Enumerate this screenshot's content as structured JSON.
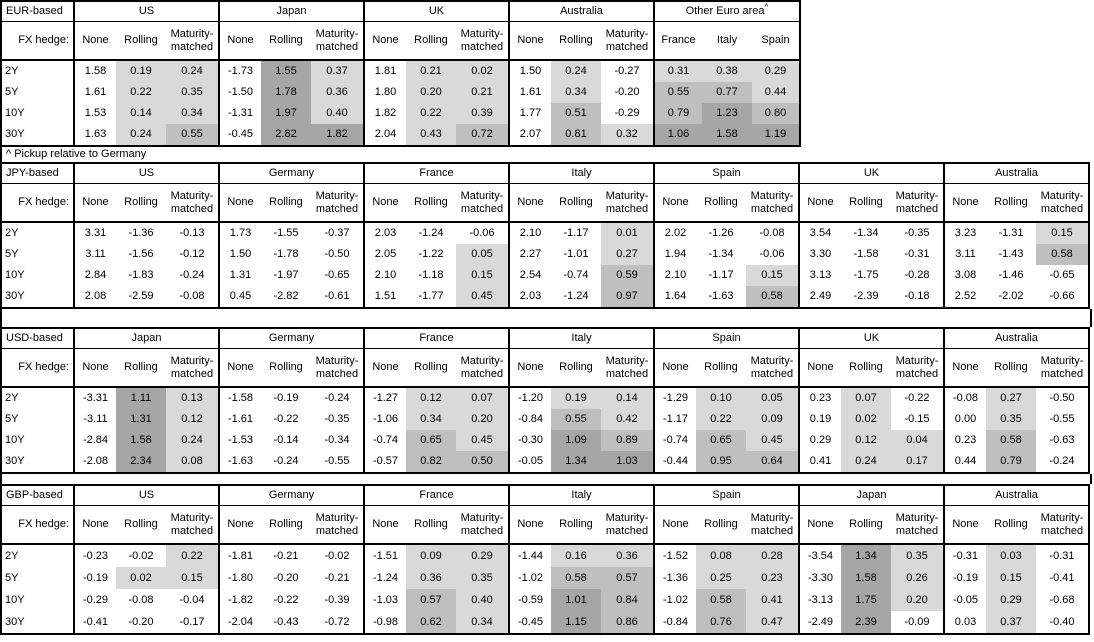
{
  "note": "^ Pickup relative to Germany",
  "fx_hedge_label": "FX hedge:",
  "sub_columns": [
    "None",
    "Rolling",
    "Maturity-matched"
  ],
  "maturities": [
    "2Y",
    "5Y",
    "10Y",
    "30Y"
  ],
  "shading": {
    "rule": "positive values in Rolling/Maturity-matched and pickup columns, bucketed by magnitude",
    "thresholds": [
      0.5,
      1.0
    ],
    "colors": [
      "#d9d9d9",
      "#bfbfbf",
      "#a6a6a6"
    ],
    "border_color": "#000000",
    "background_color": "#ffffff"
  },
  "tables": [
    {
      "base_label": "EUR-based",
      "groups": [
        {
          "name": "US",
          "rows": [
            [
              "1.58",
              "0.19",
              "0.24"
            ],
            [
              "1.61",
              "0.22",
              "0.35"
            ],
            [
              "1.53",
              "0.14",
              "0.34"
            ],
            [
              "1.63",
              "0.24",
              "0.55"
            ]
          ]
        },
        {
          "name": "Japan",
          "rows": [
            [
              "-1.73",
              "1.55",
              "0.37"
            ],
            [
              "-1.50",
              "1.78",
              "0.36"
            ],
            [
              "-1.31",
              "1.97",
              "0.40"
            ],
            [
              "-0.45",
              "2.82",
              "1.82"
            ]
          ]
        },
        {
          "name": "UK",
          "rows": [
            [
              "1.81",
              "0.21",
              "0.02"
            ],
            [
              "1.80",
              "0.20",
              "0.21"
            ],
            [
              "1.82",
              "0.22",
              "0.39"
            ],
            [
              "2.04",
              "0.43",
              "0.72"
            ]
          ]
        },
        {
          "name": "Australia",
          "rows": [
            [
              "1.50",
              "0.24",
              "-0.27"
            ],
            [
              "1.61",
              "0.34",
              "-0.20"
            ],
            [
              "1.77",
              "0.51",
              "-0.29"
            ],
            [
              "2.07",
              "0.81",
              "0.32"
            ]
          ]
        },
        {
          "name": "Other Euro area",
          "sup": "^",
          "columns": [
            "France",
            "Italy",
            "Spain"
          ],
          "shaded_columns": [
            0,
            1,
            2
          ],
          "rows": [
            [
              "0.31",
              "0.38",
              "0.29"
            ],
            [
              "0.55",
              "0.77",
              "0.44"
            ],
            [
              "0.79",
              "1.23",
              "0.80"
            ],
            [
              "1.06",
              "1.58",
              "1.19"
            ]
          ]
        }
      ]
    },
    {
      "base_label": "JPY-based",
      "groups": [
        {
          "name": "US",
          "rows": [
            [
              "3.31",
              "-1.36",
              "-0.13"
            ],
            [
              "3.11",
              "-1.56",
              "-0.12"
            ],
            [
              "2.84",
              "-1.83",
              "-0.24"
            ],
            [
              "2.08",
              "-2.59",
              "-0.08"
            ]
          ]
        },
        {
          "name": "Germany",
          "rows": [
            [
              "1.73",
              "-1.55",
              "-0.37"
            ],
            [
              "1.50",
              "-1.78",
              "-0.50"
            ],
            [
              "1.31",
              "-1.97",
              "-0.65"
            ],
            [
              "0.45",
              "-2.82",
              "-0.61"
            ]
          ]
        },
        {
          "name": "France",
          "rows": [
            [
              "2.03",
              "-1.24",
              "-0.06"
            ],
            [
              "2.05",
              "-1.22",
              "0.05"
            ],
            [
              "2.10",
              "-1.18",
              "0.15"
            ],
            [
              "1.51",
              "-1.77",
              "0.45"
            ]
          ]
        },
        {
          "name": "Italy",
          "rows": [
            [
              "2.10",
              "-1.17",
              "0.01"
            ],
            [
              "2.27",
              "-1.01",
              "0.27"
            ],
            [
              "2.54",
              "-0.74",
              "0.59"
            ],
            [
              "2.03",
              "-1.24",
              "0.97"
            ]
          ]
        },
        {
          "name": "Spain",
          "rows": [
            [
              "2.02",
              "-1.26",
              "-0.08"
            ],
            [
              "1.94",
              "-1.34",
              "-0.06"
            ],
            [
              "2.10",
              "-1.17",
              "0.15"
            ],
            [
              "1.64",
              "-1.63",
              "0.58"
            ]
          ]
        },
        {
          "name": "UK",
          "rows": [
            [
              "3.54",
              "-1.34",
              "-0.35"
            ],
            [
              "3.30",
              "-1.58",
              "-0.31"
            ],
            [
              "3.13",
              "-1.75",
              "-0.28"
            ],
            [
              "2.49",
              "-2.39",
              "-0.18"
            ]
          ]
        },
        {
          "name": "Australia",
          "rows": [
            [
              "3.23",
              "-1.31",
              "0.15"
            ],
            [
              "3.11",
              "-1.43",
              "0.58"
            ],
            [
              "3.08",
              "-1.46",
              "-0.65"
            ],
            [
              "2.52",
              "-2.02",
              "-0.66"
            ]
          ]
        }
      ]
    },
    {
      "base_label": "USD-based",
      "groups": [
        {
          "name": "Japan",
          "rows": [
            [
              "-3.31",
              "1.11",
              "0.13"
            ],
            [
              "-3.11",
              "1.31",
              "0.12"
            ],
            [
              "-2.84",
              "1.58",
              "0.24"
            ],
            [
              "-2.08",
              "2.34",
              "0.08"
            ]
          ]
        },
        {
          "name": "Germany",
          "rows": [
            [
              "-1.58",
              "-0.19",
              "-0.24"
            ],
            [
              "-1.61",
              "-0.22",
              "-0.35"
            ],
            [
              "-1.53",
              "-0.14",
              "-0.34"
            ],
            [
              "-1.63",
              "-0.24",
              "-0.55"
            ]
          ]
        },
        {
          "name": "France",
          "rows": [
            [
              "-1.27",
              "0.12",
              "0.07"
            ],
            [
              "-1.06",
              "0.34",
              "0.20"
            ],
            [
              "-0.74",
              "0.65",
              "0.45"
            ],
            [
              "-0.57",
              "0.82",
              "0.50"
            ]
          ]
        },
        {
          "name": "Italy",
          "rows": [
            [
              "-1.20",
              "0.19",
              "0.14"
            ],
            [
              "-0.84",
              "0.55",
              "0.42"
            ],
            [
              "-0.30",
              "1.09",
              "0.89"
            ],
            [
              "-0.05",
              "1.34",
              "1.03"
            ]
          ]
        },
        {
          "name": "Spain",
          "rows": [
            [
              "-1.29",
              "0.10",
              "0.05"
            ],
            [
              "-1.17",
              "0.22",
              "0.09"
            ],
            [
              "-0.74",
              "0.65",
              "0.45"
            ],
            [
              "-0.44",
              "0.95",
              "0.64"
            ]
          ]
        },
        {
          "name": "UK",
          "rows": [
            [
              "0.23",
              "0.07",
              "-0.22"
            ],
            [
              "0.19",
              "0.02",
              "-0.15"
            ],
            [
              "0.29",
              "0.12",
              "0.04"
            ],
            [
              "0.41",
              "0.24",
              "0.17"
            ]
          ]
        },
        {
          "name": "Australia",
          "rows": [
            [
              "-0.08",
              "0.27",
              "-0.50"
            ],
            [
              "0.00",
              "0.35",
              "-0.55"
            ],
            [
              "0.23",
              "0.58",
              "-0.63"
            ],
            [
              "0.44",
              "0.79",
              "-0.24"
            ]
          ]
        }
      ]
    },
    {
      "base_label": "GBP-based",
      "groups": [
        {
          "name": "US",
          "rows": [
            [
              "-0.23",
              "-0.02",
              "0.22"
            ],
            [
              "-0.19",
              "0.02",
              "0.15"
            ],
            [
              "-0.29",
              "-0.08",
              "-0.04"
            ],
            [
              "-0.41",
              "-0.20",
              "-0.17"
            ]
          ]
        },
        {
          "name": "Germany",
          "rows": [
            [
              "-1.81",
              "-0.21",
              "-0.02"
            ],
            [
              "-1.80",
              "-0.20",
              "-0.21"
            ],
            [
              "-1.82",
              "-0.22",
              "-0.39"
            ],
            [
              "-2.04",
              "-0.43",
              "-0.72"
            ]
          ]
        },
        {
          "name": "France",
          "rows": [
            [
              "-1.51",
              "0.09",
              "0.29"
            ],
            [
              "-1.24",
              "0.36",
              "0.35"
            ],
            [
              "-1.03",
              "0.57",
              "0.40"
            ],
            [
              "-0.98",
              "0.62",
              "0.34"
            ]
          ]
        },
        {
          "name": "Italy",
          "rows": [
            [
              "-1.44",
              "0.16",
              "0.36"
            ],
            [
              "-1.02",
              "0.58",
              "0.57"
            ],
            [
              "-0.59",
              "1.01",
              "0.84"
            ],
            [
              "-0.45",
              "1.15",
              "0.86"
            ]
          ]
        },
        {
          "name": "Spain",
          "rows": [
            [
              "-1.52",
              "0.08",
              "0.28"
            ],
            [
              "-1.36",
              "0.25",
              "0.23"
            ],
            [
              "-1.02",
              "0.58",
              "0.41"
            ],
            [
              "-0.84",
              "0.76",
              "0.47"
            ]
          ]
        },
        {
          "name": "Japan",
          "rows": [
            [
              "-3.54",
              "1.34",
              "0.35"
            ],
            [
              "-3.30",
              "1.58",
              "0.26"
            ],
            [
              "-3.13",
              "1.75",
              "0.20"
            ],
            [
              "-2.49",
              "2.39",
              "-0.09"
            ]
          ]
        },
        {
          "name": "Australia",
          "rows": [
            [
              "-0.31",
              "0.03",
              "-0.31"
            ],
            [
              "-0.19",
              "0.15",
              "-0.41"
            ],
            [
              "-0.05",
              "0.29",
              "-0.68"
            ],
            [
              "0.03",
              "0.37",
              "-0.40"
            ]
          ]
        }
      ]
    }
  ]
}
